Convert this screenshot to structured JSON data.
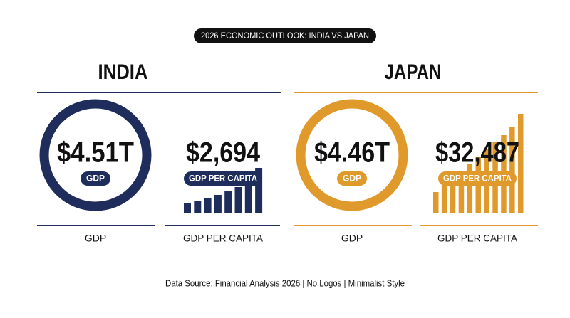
{
  "title": "2026 ECONOMIC OUTLOOK: INDIA VS JAPAN",
  "countries": [
    {
      "name": "INDIA",
      "color": "#1f2d5c",
      "gdp": {
        "value": "$4.51T",
        "badge": "GDP",
        "label": "GDP"
      },
      "gdp_per_capita": {
        "value": "$2,694",
        "badge": "GDP PER CAPITA",
        "label": "GDP PER CAPITA"
      }
    },
    {
      "name": "JAPAN",
      "color": "#e09a2b",
      "gdp": {
        "value": "$4.46T",
        "badge": "GDP",
        "label": "GDP"
      },
      "gdp_per_capita": {
        "value": "$32,487",
        "badge": "GDP PER CAPITA",
        "label": "GDP PER CAPITA"
      }
    }
  ],
  "footer": "Data Source: Financial Analysis 2026 | No Logos | Minimalist Style"
}
